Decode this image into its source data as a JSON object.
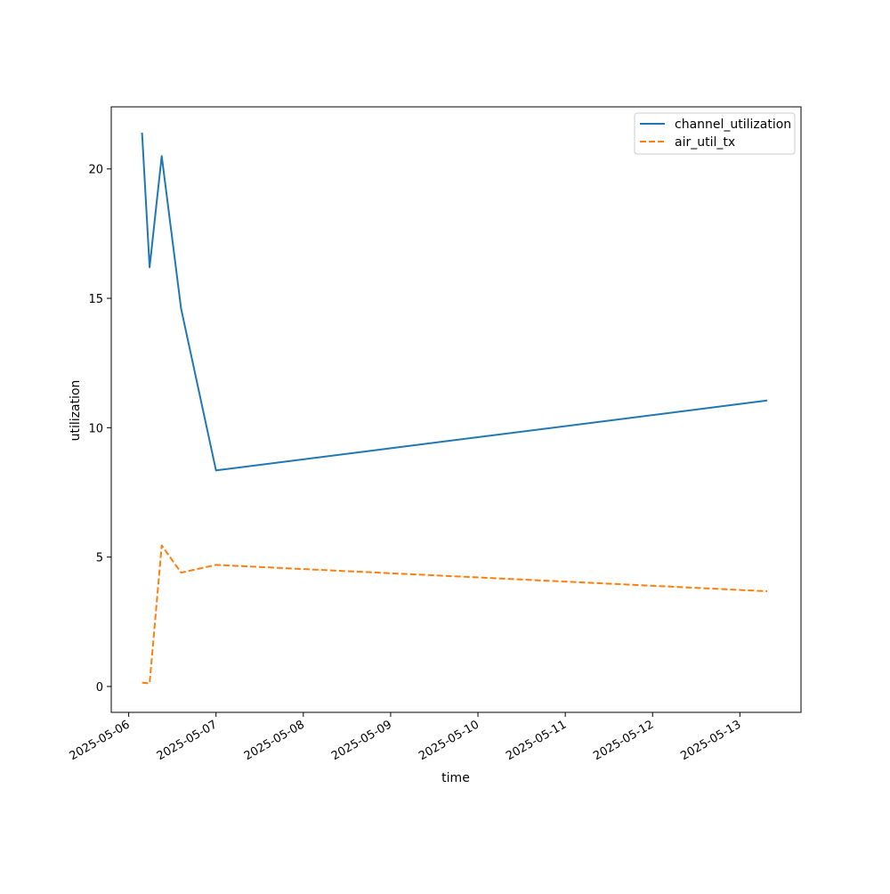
{
  "chart_data": {
    "type": "line",
    "xlabel": "time",
    "ylabel": "utilization",
    "x_type": "datetime",
    "xlim": [
      "2025-05-05T19:12:00",
      "2025-05-13T16:48:00"
    ],
    "ylim": [
      -1.0,
      22.4
    ],
    "x_ticks": [
      "2025-05-06",
      "2025-05-07",
      "2025-05-08",
      "2025-05-09",
      "2025-05-10",
      "2025-05-11",
      "2025-05-12",
      "2025-05-13"
    ],
    "y_ticks": [
      0,
      5,
      10,
      15,
      20
    ],
    "grid": false,
    "legend_position": "top-right",
    "series": [
      {
        "name": "channel_utilization",
        "color": "#1f77b4",
        "line_style": "solid",
        "points": [
          {
            "x": "2025-05-06T03:40:00",
            "y": 21.4
          },
          {
            "x": "2025-05-06T05:45:00",
            "y": 16.2
          },
          {
            "x": "2025-05-06T09:05:00",
            "y": 20.5
          },
          {
            "x": "2025-05-06T14:25:00",
            "y": 14.6
          },
          {
            "x": "2025-05-07T00:00:00",
            "y": 8.35
          },
          {
            "x": "2025-05-13T07:30:00",
            "y": 11.05
          }
        ]
      },
      {
        "name": "air_util_tx",
        "color": "#ff7f0e",
        "line_style": "dashed",
        "points": [
          {
            "x": "2025-05-06T03:40:00",
            "y": 0.15
          },
          {
            "x": "2025-05-06T05:45:00",
            "y": 0.12
          },
          {
            "x": "2025-05-06T09:05:00",
            "y": 5.45
          },
          {
            "x": "2025-05-06T14:25:00",
            "y": 4.4
          },
          {
            "x": "2025-05-07T00:00:00",
            "y": 4.7
          },
          {
            "x": "2025-05-13T07:30:00",
            "y": 3.68
          }
        ]
      }
    ]
  }
}
